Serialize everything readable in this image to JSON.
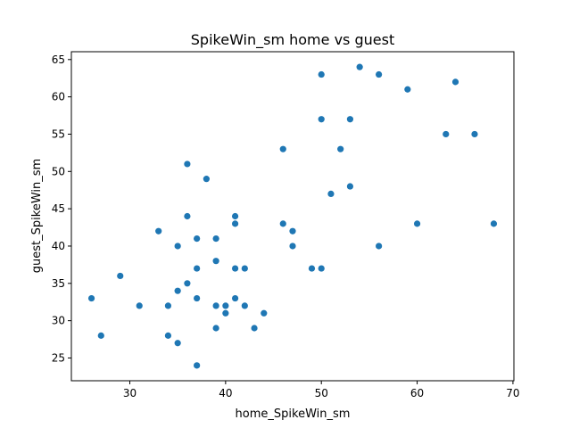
{
  "chart_data": {
    "type": "scatter",
    "title": "SpikeWin_sm home vs guest",
    "xlabel": "home_SpikeWin_sm",
    "ylabel": "guest_SpikeWin_sm",
    "xlim": [
      23.9,
      70.1
    ],
    "ylim": [
      21.95,
      66.05
    ],
    "xticks": [
      30,
      40,
      50,
      60,
      70
    ],
    "yticks": [
      25,
      30,
      35,
      40,
      45,
      50,
      55,
      60,
      65
    ],
    "grid": false,
    "point_color": "#1f77b4",
    "points": [
      {
        "x": 26,
        "y": 33
      },
      {
        "x": 27,
        "y": 28
      },
      {
        "x": 29,
        "y": 36
      },
      {
        "x": 31,
        "y": 32
      },
      {
        "x": 33,
        "y": 42
      },
      {
        "x": 34,
        "y": 32
      },
      {
        "x": 34,
        "y": 28
      },
      {
        "x": 35,
        "y": 40
      },
      {
        "x": 35,
        "y": 34
      },
      {
        "x": 35,
        "y": 27
      },
      {
        "x": 36,
        "y": 51
      },
      {
        "x": 36,
        "y": 44
      },
      {
        "x": 36,
        "y": 35
      },
      {
        "x": 37,
        "y": 41
      },
      {
        "x": 37,
        "y": 37
      },
      {
        "x": 37,
        "y": 33
      },
      {
        "x": 37,
        "y": 24
      },
      {
        "x": 38,
        "y": 49
      },
      {
        "x": 39,
        "y": 41
      },
      {
        "x": 39,
        "y": 38
      },
      {
        "x": 39,
        "y": 32
      },
      {
        "x": 39,
        "y": 29
      },
      {
        "x": 40,
        "y": 32
      },
      {
        "x": 40,
        "y": 31
      },
      {
        "x": 41,
        "y": 44
      },
      {
        "x": 41,
        "y": 43
      },
      {
        "x": 41,
        "y": 37
      },
      {
        "x": 41,
        "y": 33
      },
      {
        "x": 42,
        "y": 37
      },
      {
        "x": 42,
        "y": 32
      },
      {
        "x": 43,
        "y": 29
      },
      {
        "x": 44,
        "y": 31
      },
      {
        "x": 46,
        "y": 53
      },
      {
        "x": 46,
        "y": 43
      },
      {
        "x": 47,
        "y": 42
      },
      {
        "x": 47,
        "y": 40
      },
      {
        "x": 49,
        "y": 37
      },
      {
        "x": 50,
        "y": 63
      },
      {
        "x": 50,
        "y": 57
      },
      {
        "x": 50,
        "y": 37
      },
      {
        "x": 51,
        "y": 47
      },
      {
        "x": 52,
        "y": 53
      },
      {
        "x": 53,
        "y": 57
      },
      {
        "x": 53,
        "y": 48
      },
      {
        "x": 54,
        "y": 64
      },
      {
        "x": 56,
        "y": 63
      },
      {
        "x": 56,
        "y": 40
      },
      {
        "x": 59,
        "y": 61
      },
      {
        "x": 60,
        "y": 43
      },
      {
        "x": 63,
        "y": 55
      },
      {
        "x": 64,
        "y": 62
      },
      {
        "x": 66,
        "y": 55
      },
      {
        "x": 68,
        "y": 43
      }
    ]
  }
}
